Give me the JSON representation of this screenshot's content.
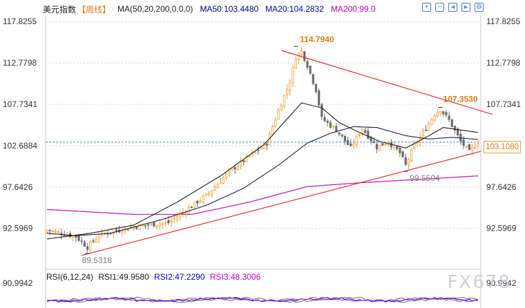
{
  "header": {
    "symbol": "美元指数",
    "period": "【周线】",
    "ma_params": "MA(50,20,200,0,0,0)",
    "ma50": "MA50:103.4480",
    "ma20": "MA20:104.2832",
    "ma200": "MA200:99.0"
  },
  "toolbar": {
    "items": [
      "plus-icon",
      "minus-icon",
      "left-arrow-icon",
      "right-arrow-icon",
      "settings-icon"
    ],
    "glyphs": [
      "+",
      "−",
      "◂",
      "▸",
      "⚙"
    ]
  },
  "price_labels": {
    "high": "114.7940",
    "swing_high": "107.3530",
    "swing_low": "99.5504",
    "low": "89.5318",
    "current": "103.1080"
  },
  "rsi": {
    "params": "RSI(6,12,24)",
    "rsi1": "RSI1:49.9580",
    "rsi2": "RSI2:47.2290",
    "rsi3": "RSI3:48.3006",
    "axis_label": "90.9942"
  },
  "watermark": "FX678",
  "colors": {
    "up": "#f0a030",
    "down": "#6b6b6b",
    "ma50": "#1a1a3a",
    "ma20": "#1a1a1a",
    "ma200": "#c020c0",
    "trend": "#e02020",
    "header_ma50": "#000080",
    "header_ma20": "#0000c0",
    "header_ma200": "#c000c0",
    "label_orange": "#e07818",
    "label_gray": "#808080",
    "grid": "#d8d8d8",
    "current_line": "#5080c0"
  },
  "chart_data": {
    "type": "candlestick",
    "title": "美元指数 周线",
    "y_ticks": [
      117.8255,
      112.7798,
      107.7341,
      102.6884,
      97.6426,
      92.5969,
      90.9942
    ],
    "ylim": [
      87.6,
      118.6
    ],
    "current_price": 103.108,
    "candle_count": 150,
    "close_path": [
      [
        0,
        92.4
      ],
      [
        10,
        91.6
      ],
      [
        14,
        90.3
      ],
      [
        18,
        91.8
      ],
      [
        30,
        92.8
      ],
      [
        42,
        93.3
      ],
      [
        55,
        96.6
      ],
      [
        63,
        99.5
      ],
      [
        70,
        101.4
      ],
      [
        76,
        103.0
      ],
      [
        80,
        107.0
      ],
      [
        84,
        110.5
      ],
      [
        86,
        113.5
      ],
      [
        88,
        114.2
      ],
      [
        90,
        112.5
      ],
      [
        93,
        109.5
      ],
      [
        95,
        106.0
      ],
      [
        100,
        104.6
      ],
      [
        105,
        102.4
      ],
      [
        109,
        104.8
      ],
      [
        114,
        102.5
      ],
      [
        118,
        103.2
      ],
      [
        122,
        101.8
      ],
      [
        124,
        100.3
      ],
      [
        127,
        102.7
      ],
      [
        131,
        104.8
      ],
      [
        134,
        106.6
      ],
      [
        136,
        107.1
      ],
      [
        139,
        105.8
      ],
      [
        143,
        103.2
      ],
      [
        146,
        101.9
      ],
      [
        149,
        103.1
      ]
    ],
    "ma20_path": [
      [
        0,
        91.3
      ],
      [
        15,
        92.0
      ],
      [
        30,
        93.0
      ],
      [
        45,
        95.8
      ],
      [
        60,
        99.0
      ],
      [
        75,
        102.8
      ],
      [
        88,
        107.9
      ],
      [
        95,
        107.3
      ],
      [
        101,
        105.5
      ],
      [
        108,
        104.3
      ],
      [
        115,
        103.2
      ],
      [
        124,
        102.4
      ],
      [
        130,
        103.5
      ],
      [
        137,
        104.9
      ],
      [
        143,
        104.6
      ],
      [
        149,
        104.3
      ]
    ],
    "ma50_path": [
      [
        0,
        92.0
      ],
      [
        10,
        91.7
      ],
      [
        22,
        92.0
      ],
      [
        40,
        93.7
      ],
      [
        55,
        95.4
      ],
      [
        68,
        97.5
      ],
      [
        80,
        100.3
      ],
      [
        90,
        103.0
      ],
      [
        98,
        104.2
      ],
      [
        106,
        105.0
      ],
      [
        114,
        104.9
      ],
      [
        124,
        103.9
      ],
      [
        132,
        103.5
      ],
      [
        140,
        103.7
      ],
      [
        149,
        103.45
      ]
    ],
    "ma200_path": [
      [
        0,
        94.9
      ],
      [
        30,
        94.3
      ],
      [
        50,
        94.3
      ],
      [
        70,
        95.8
      ],
      [
        90,
        97.7
      ],
      [
        110,
        98.2
      ],
      [
        130,
        98.6
      ],
      [
        149,
        99.0
      ]
    ],
    "trend_lines": [
      {
        "name": "upper",
        "points": [
          [
            81,
            114.3
          ],
          [
            154,
            106.5
          ]
        ]
      },
      {
        "name": "lower",
        "points": [
          [
            12,
            89.3
          ],
          [
            150,
            102.0
          ]
        ]
      }
    ],
    "annotations": [
      {
        "label": "114.7940",
        "index": 86,
        "value": 114.794
      },
      {
        "label": "107.3530",
        "index": 136,
        "value": 107.353
      },
      {
        "label": "99.5504",
        "index": 124,
        "value": 99.5504
      },
      {
        "label": "89.5318",
        "index": 14,
        "value": 89.5318
      }
    ]
  }
}
